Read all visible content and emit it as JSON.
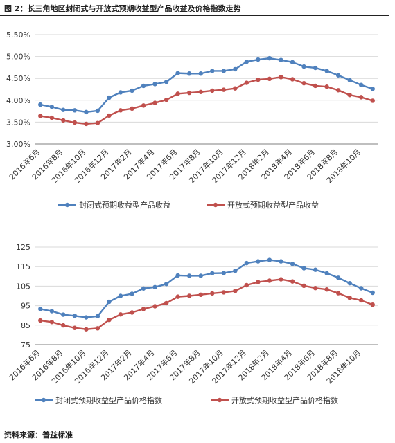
{
  "figure": {
    "title": "图 2：长三角地区封闭式与开放式预期收益型产品收益及价格指数走势",
    "source": "资料来源：普益标准"
  },
  "colors": {
    "closed": "#4f81bd",
    "open": "#c0504d",
    "grid": "#d9d9d9",
    "axis": "#7f7f7f"
  },
  "chart_data": [
    {
      "type": "line",
      "categories": [
        "2016年6月",
        "2016年7月",
        "2016年8月",
        "2016年9月",
        "2016年10月",
        "2016年11月",
        "2016年12月",
        "2017年1月",
        "2017年2月",
        "2017年3月",
        "2017年4月",
        "2017年5月",
        "2017年6月",
        "2017年7月",
        "2017年8月",
        "2017年9月",
        "2017年10月",
        "2017年11月",
        "2017年12月",
        "2018年1月",
        "2018年2月",
        "2018年3月",
        "2018年4月",
        "2018年5月",
        "2018年6月",
        "2018年7月",
        "2018年8月",
        "2018年9月",
        "2018年10月",
        "2018年11月"
      ],
      "tick_labels": [
        "2016年6月",
        "2016年8月",
        "2016年10月",
        "2016年12月",
        "2017年2月",
        "2017年4月",
        "2017年6月",
        "2017年8月",
        "2017年10月",
        "2017年12月",
        "2018年2月",
        "2018年4月",
        "2018年6月",
        "2018年8月",
        "2018年10月"
      ],
      "yticks": [
        "3.00%",
        "3.50%",
        "4.00%",
        "4.50%",
        "5.00%",
        "5.50%"
      ],
      "ylim": [
        3.0,
        5.5
      ],
      "grid": true,
      "legend": "bottom",
      "series": [
        {
          "name": "封闭式预期收益型产品收益",
          "color": "#4f81bd",
          "values": [
            3.9,
            3.85,
            3.78,
            3.77,
            3.73,
            3.76,
            4.06,
            4.18,
            4.22,
            4.33,
            4.37,
            4.42,
            4.62,
            4.61,
            4.61,
            4.67,
            4.67,
            4.71,
            4.88,
            4.93,
            4.96,
            4.92,
            4.87,
            4.77,
            4.74,
            4.67,
            4.57,
            4.46,
            4.35,
            4.26
          ]
        },
        {
          "name": "开放式预期收益型产品收益",
          "color": "#c0504d",
          "values": [
            3.64,
            3.6,
            3.54,
            3.49,
            3.46,
            3.48,
            3.65,
            3.77,
            3.81,
            3.88,
            3.94,
            4.01,
            4.15,
            4.17,
            4.19,
            4.22,
            4.24,
            4.27,
            4.4,
            4.47,
            4.49,
            4.53,
            4.48,
            4.39,
            4.33,
            4.31,
            4.23,
            4.12,
            4.07,
            3.99
          ]
        }
      ]
    },
    {
      "type": "line",
      "categories": [
        "2016年6月",
        "2016年7月",
        "2016年8月",
        "2016年9月",
        "2016年10月",
        "2016年11月",
        "2016年12月",
        "2017年1月",
        "2017年2月",
        "2017年3月",
        "2017年4月",
        "2017年5月",
        "2017年6月",
        "2017年7月",
        "2017年8月",
        "2017年9月",
        "2017年10月",
        "2017年11月",
        "2017年12月",
        "2018年1月",
        "2018年2月",
        "2018年3月",
        "2018年4月",
        "2018年5月",
        "2018年6月",
        "2018年7月",
        "2018年8月",
        "2018年9月",
        "2018年10月",
        "2018年11月"
      ],
      "tick_labels": [
        "2016年6月",
        "2016年8月",
        "2016年10月",
        "2016年12月",
        "2017年2月",
        "2017年4月",
        "2017年6月",
        "2017年8月",
        "2017年10月",
        "2017年12月",
        "2018年2月",
        "2018年4月",
        "2018年6月",
        "2018年8月",
        "2018年10月"
      ],
      "yticks": [
        "75",
        "85",
        "95",
        "105",
        "115",
        "125"
      ],
      "ylim": [
        75,
        125
      ],
      "grid": true,
      "legend": "bottom",
      "series": [
        {
          "name": "封闭式预期收益型产品价格指数",
          "color": "#4f81bd",
          "values": [
            93.3,
            92.2,
            90.4,
            89.8,
            89.0,
            89.6,
            97.0,
            100.0,
            101.1,
            103.8,
            104.5,
            106.1,
            110.5,
            110.3,
            110.3,
            111.6,
            111.7,
            112.8,
            116.8,
            117.7,
            118.4,
            117.7,
            116.4,
            114.2,
            113.4,
            111.6,
            109.3,
            106.5,
            103.9,
            101.6
          ]
        },
        {
          "name": "开放式预期收益型产品价格指数",
          "color": "#c0504d",
          "values": [
            87.4,
            86.6,
            84.9,
            83.6,
            82.9,
            83.4,
            87.7,
            90.5,
            91.5,
            93.3,
            94.7,
            96.3,
            99.6,
            100.0,
            100.6,
            101.3,
            101.8,
            102.5,
            105.5,
            107.1,
            107.8,
            108.5,
            107.4,
            105.2,
            104.0,
            103.3,
            101.4,
            99.0,
            97.7,
            95.5
          ]
        }
      ]
    }
  ]
}
